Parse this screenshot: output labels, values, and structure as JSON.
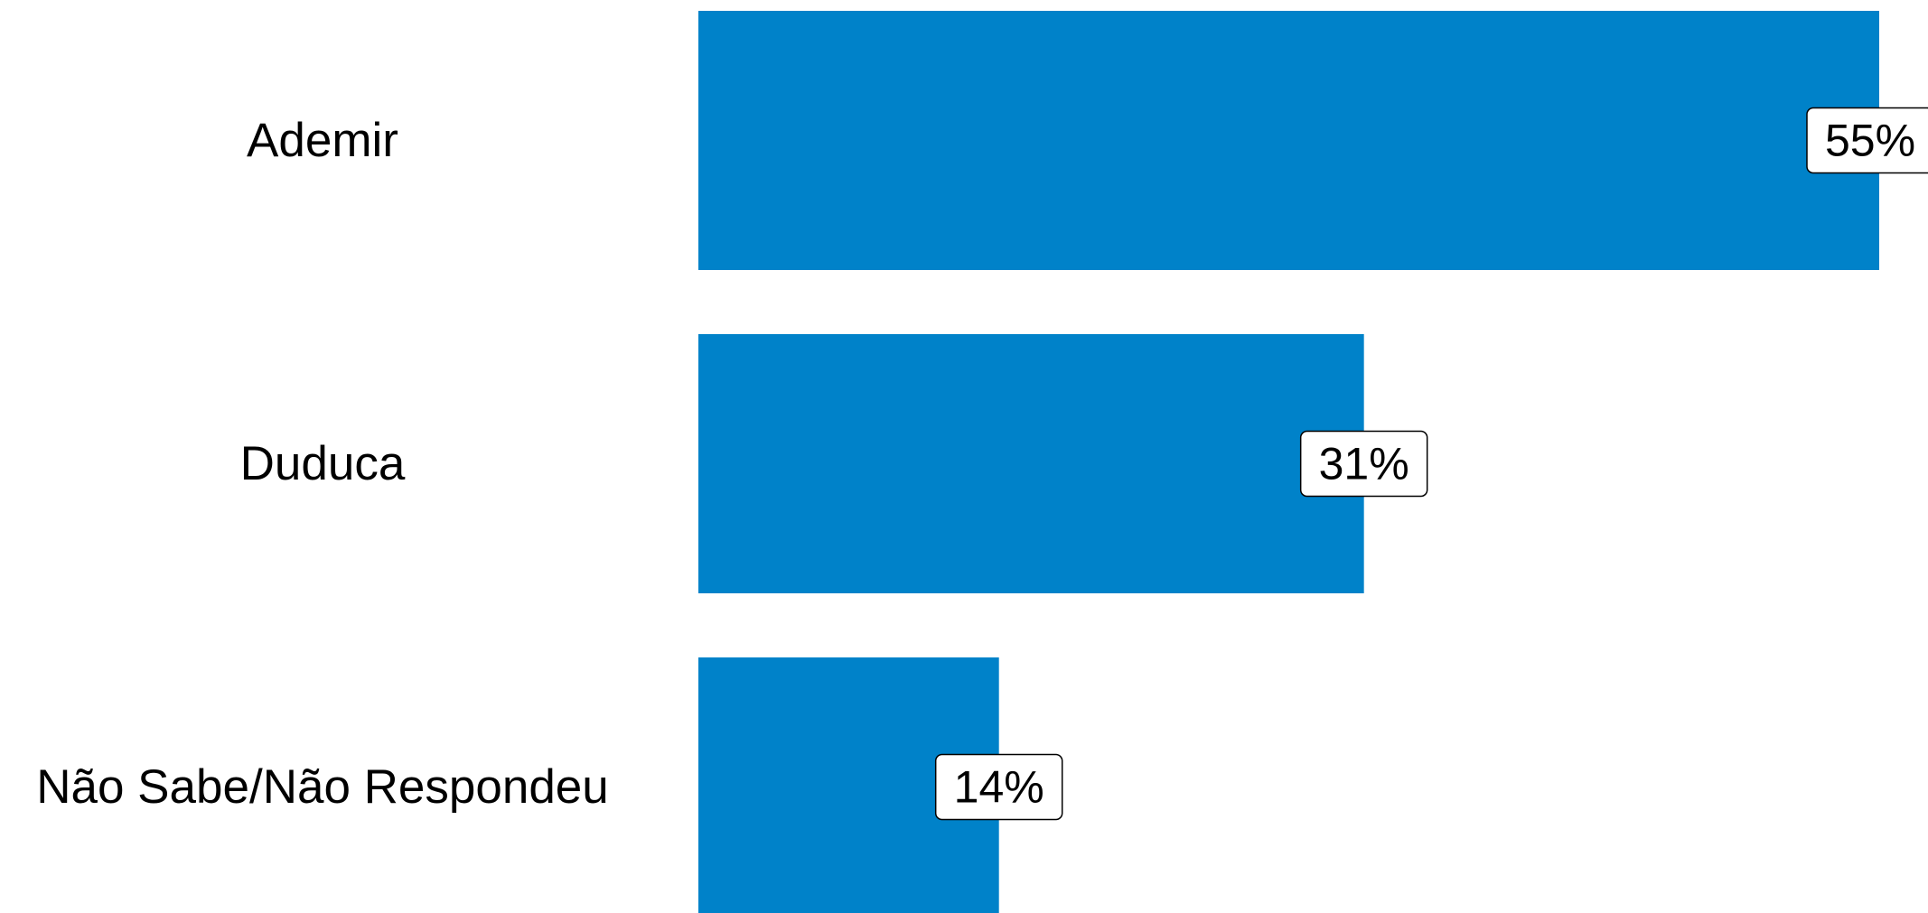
{
  "chart_data": {
    "type": "bar",
    "orientation": "horizontal",
    "categories": [
      "Ademir",
      "Duduca",
      "Não Sabe/Não Respondeu"
    ],
    "values": [
      55,
      31,
      14
    ],
    "value_suffix": "%",
    "data_labels": [
      "55%",
      "31%",
      "14%"
    ],
    "title": "",
    "xlabel": "",
    "ylabel": "",
    "xlim": [
      0,
      55
    ],
    "grid": false,
    "legend": "none",
    "bar_color": "#0082C9"
  }
}
